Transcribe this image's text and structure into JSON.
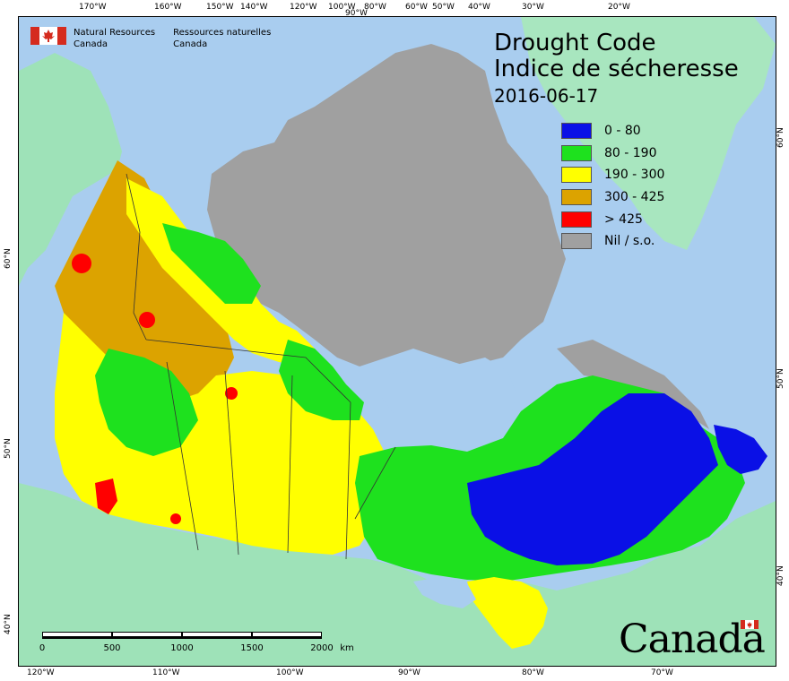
{
  "organization": {
    "name_en_line1": "Natural Resources",
    "name_en_line2": "Canada",
    "name_fr_line1": "Ressources naturelles",
    "name_fr_line2": "Canada"
  },
  "title": {
    "en": "Drought Code",
    "fr": "Indice de sécheresse",
    "date": "2016-06-17"
  },
  "legend": [
    {
      "label": "0 - 80",
      "color": "#0a10e6"
    },
    {
      "label": "80 - 190",
      "color": "#1ee11e"
    },
    {
      "label": "190 - 300",
      "color": "#ffff00"
    },
    {
      "label": "300 - 425",
      "color": "#dca300"
    },
    {
      "label": "> 425",
      "color": "#ff0000"
    },
    {
      "label": "Nil / s.o.",
      "color": "#a0a0a0"
    }
  ],
  "colors": {
    "water": "#a9cdef",
    "usa_land": "#9ee2b8",
    "greenland": "#a8e6bf",
    "no_data": "#a0a0a0"
  },
  "top_longitude_labels": [
    "170°W",
    "160°W",
    "150°W",
    "140°W",
    "120°W",
    "100°W",
    "90°W",
    "80°W",
    "60°W",
    "50°W",
    "40°W",
    "30°W",
    "20°W"
  ],
  "bottom_longitude_labels": [
    "120°W",
    "110°W",
    "100°W",
    "90°W",
    "80°W",
    "70°W"
  ],
  "left_latitude_labels": [
    "60°N",
    "50°N",
    "40°N"
  ],
  "right_latitude_labels": [
    "60°N",
    "50°N",
    "40°N"
  ],
  "scale": {
    "ticks": [
      "0",
      "500",
      "1000",
      "1500",
      "2000"
    ],
    "unit": "km"
  },
  "wordmark": "Canada"
}
